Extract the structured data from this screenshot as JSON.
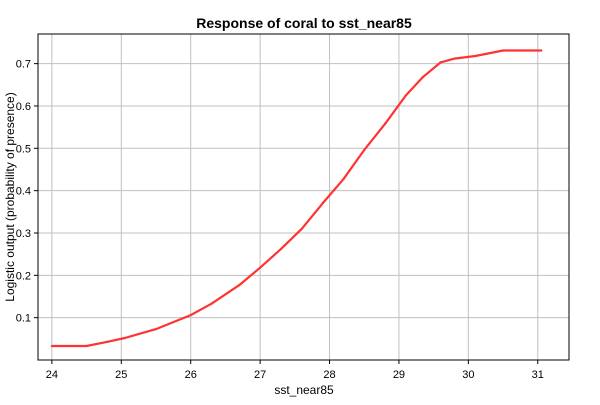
{
  "chart_data": {
    "type": "line",
    "title": "Response of coral to sst_near85",
    "xlabel": "sst_near85",
    "ylabel": "Logistic output (probability of presence)",
    "xlim": [
      23.8,
      31.45
    ],
    "ylim": [
      0.0,
      0.77
    ],
    "x_ticks": [
      24,
      25,
      26,
      27,
      28,
      29,
      30,
      31
    ],
    "y_ticks": [
      0.1,
      0.2,
      0.3,
      0.4,
      0.5,
      0.6,
      0.7
    ],
    "grid": true,
    "series": [
      {
        "color": "#ff3333",
        "x": [
          24.0,
          24.5,
          24.8,
          25.05,
          25.5,
          26.0,
          26.3,
          26.7,
          27.0,
          27.3,
          27.6,
          27.9,
          28.2,
          28.5,
          28.8,
          29.1,
          29.35,
          29.6,
          29.8,
          30.1,
          30.5,
          31.05
        ],
        "y": [
          0.033,
          0.033,
          0.043,
          0.052,
          0.073,
          0.106,
          0.133,
          0.177,
          0.218,
          0.262,
          0.31,
          0.37,
          0.427,
          0.496,
          0.558,
          0.625,
          0.669,
          0.703,
          0.712,
          0.718,
          0.731,
          0.731
        ]
      }
    ]
  }
}
